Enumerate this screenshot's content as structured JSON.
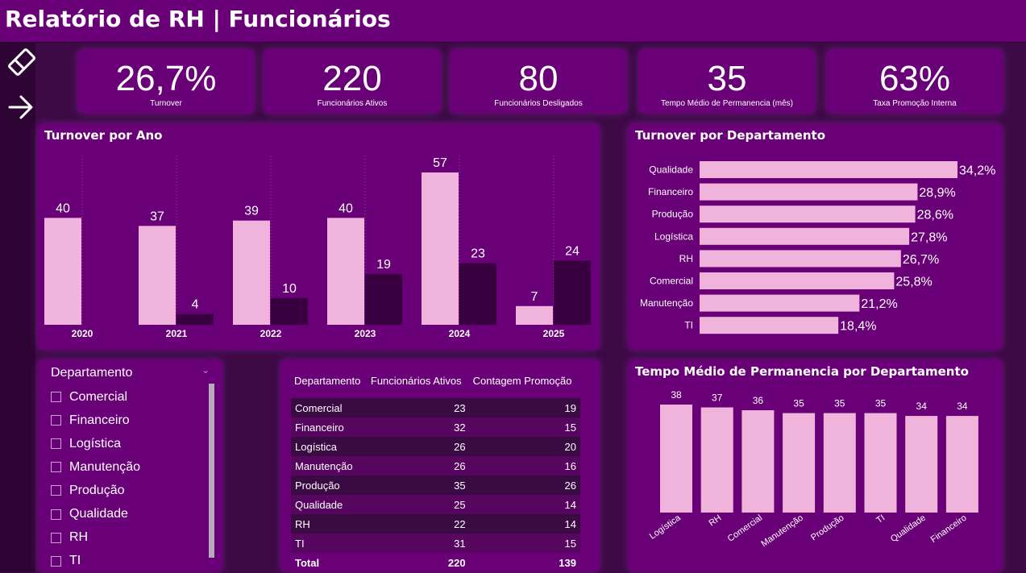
{
  "header": {
    "title": "Relatório de RH | Funcionários"
  },
  "kpis": [
    {
      "value": "26,7%",
      "label": "Turnover"
    },
    {
      "value": "220",
      "label": "Funcionários Ativos"
    },
    {
      "value": "80",
      "label": "Funcionários Desligados"
    },
    {
      "value": "35",
      "label": "Tempo Médio de Permanencia (mês)"
    },
    {
      "value": "63%",
      "label": "Taxa Promoção Interna"
    }
  ],
  "colors": {
    "bg": "#3d0a45",
    "card": "#6a0077",
    "pink": "#f0b3dc",
    "dark": "#38003f"
  },
  "chart_data": [
    {
      "type": "bar",
      "title": "Turnover por Ano",
      "categories": [
        "2020",
        "2021",
        "2022",
        "2023",
        "2024",
        "2025"
      ],
      "series": [
        {
          "values": [
            40,
            37,
            39,
            40,
            57,
            7
          ],
          "color": "#f0b3dc"
        },
        {
          "values": [
            null,
            4,
            10,
            19,
            23,
            24
          ],
          "color": "#38003f"
        }
      ],
      "ylim": [
        0,
        57
      ]
    },
    {
      "type": "bar",
      "orientation": "horizontal",
      "title": "Turnover por Departamento",
      "categories": [
        "Qualidade",
        "Financeiro",
        "Produção",
        "Logística",
        "RH",
        "Comercial",
        "Manutenção",
        "TI"
      ],
      "values": [
        34.2,
        28.9,
        28.6,
        27.8,
        26.7,
        25.8,
        21.2,
        18.4
      ],
      "labels": [
        "34,2%",
        "28,9%",
        "28,6%",
        "27,8%",
        "26,7%",
        "25,8%",
        "21,2%",
        "18,4%"
      ],
      "xlim": [
        0,
        34.2
      ]
    },
    {
      "type": "bar",
      "title": "Tempo Médio de Permanencia por Departamento",
      "categories": [
        "Logística",
        "RH",
        "Comercial",
        "Manutenção",
        "Produção",
        "TI",
        "Qualidade",
        "Financeiro"
      ],
      "values": [
        38,
        37,
        36,
        35,
        35,
        35,
        34,
        34
      ],
      "ylim": [
        0,
        38
      ]
    }
  ],
  "slicer": {
    "title": "Departamento",
    "items": [
      "Comercial",
      "Financeiro",
      "Logística",
      "Manutenção",
      "Produção",
      "Qualidade",
      "RH",
      "TI"
    ]
  },
  "table": {
    "headers": [
      "Departamento",
      "Funcionários Ativos",
      "Contagem Promoção"
    ],
    "rows": [
      [
        "Comercial",
        "23",
        "19"
      ],
      [
        "Financeiro",
        "32",
        "15"
      ],
      [
        "Logística",
        "26",
        "20"
      ],
      [
        "Manutenção",
        "26",
        "16"
      ],
      [
        "Produção",
        "35",
        "26"
      ],
      [
        "Qualidade",
        "25",
        "14"
      ],
      [
        "RH",
        "22",
        "14"
      ],
      [
        "TI",
        "31",
        "15"
      ]
    ],
    "total": [
      "Total",
      "220",
      "139"
    ]
  },
  "nav": {
    "icons": [
      "eraser-icon",
      "arrow-right-icon"
    ]
  }
}
